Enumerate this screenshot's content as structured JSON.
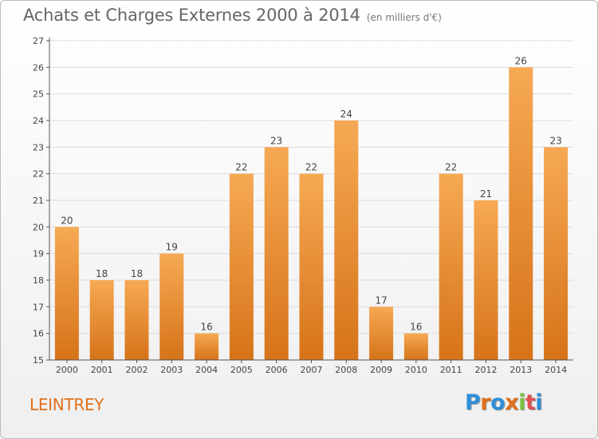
{
  "header": {
    "title": "Achats et Charges Externes 2000 à 2014",
    "subtitle": "(en milliers d'€)"
  },
  "footer": {
    "commune": "LEINTREY",
    "logo_text": "Proxiti",
    "logo_colors": [
      "#2e8fd8",
      "#e0701c",
      "#2e8fd8",
      "#e0701c",
      "#7cc242",
      "#e05252",
      "#2e8fd8"
    ]
  },
  "colors": {
    "bar_top": "#f6a954",
    "bar_bottom": "#d67319",
    "axis": "#555555",
    "grid": "#dcdcdc",
    "text": "#444444"
  },
  "chart_data": {
    "type": "bar",
    "categories": [
      "2000",
      "2001",
      "2002",
      "2003",
      "2004",
      "2005",
      "2006",
      "2007",
      "2008",
      "2009",
      "2010",
      "2011",
      "2012",
      "2013",
      "2014"
    ],
    "values": [
      20,
      18,
      18,
      19,
      16,
      22,
      23,
      22,
      24,
      17,
      16,
      22,
      21,
      26,
      23
    ],
    "ylim": [
      15,
      27
    ],
    "yticks": [
      15,
      16,
      17,
      18,
      19,
      20,
      21,
      22,
      23,
      24,
      25,
      26,
      27
    ],
    "grid": true,
    "data_labels": true
  }
}
